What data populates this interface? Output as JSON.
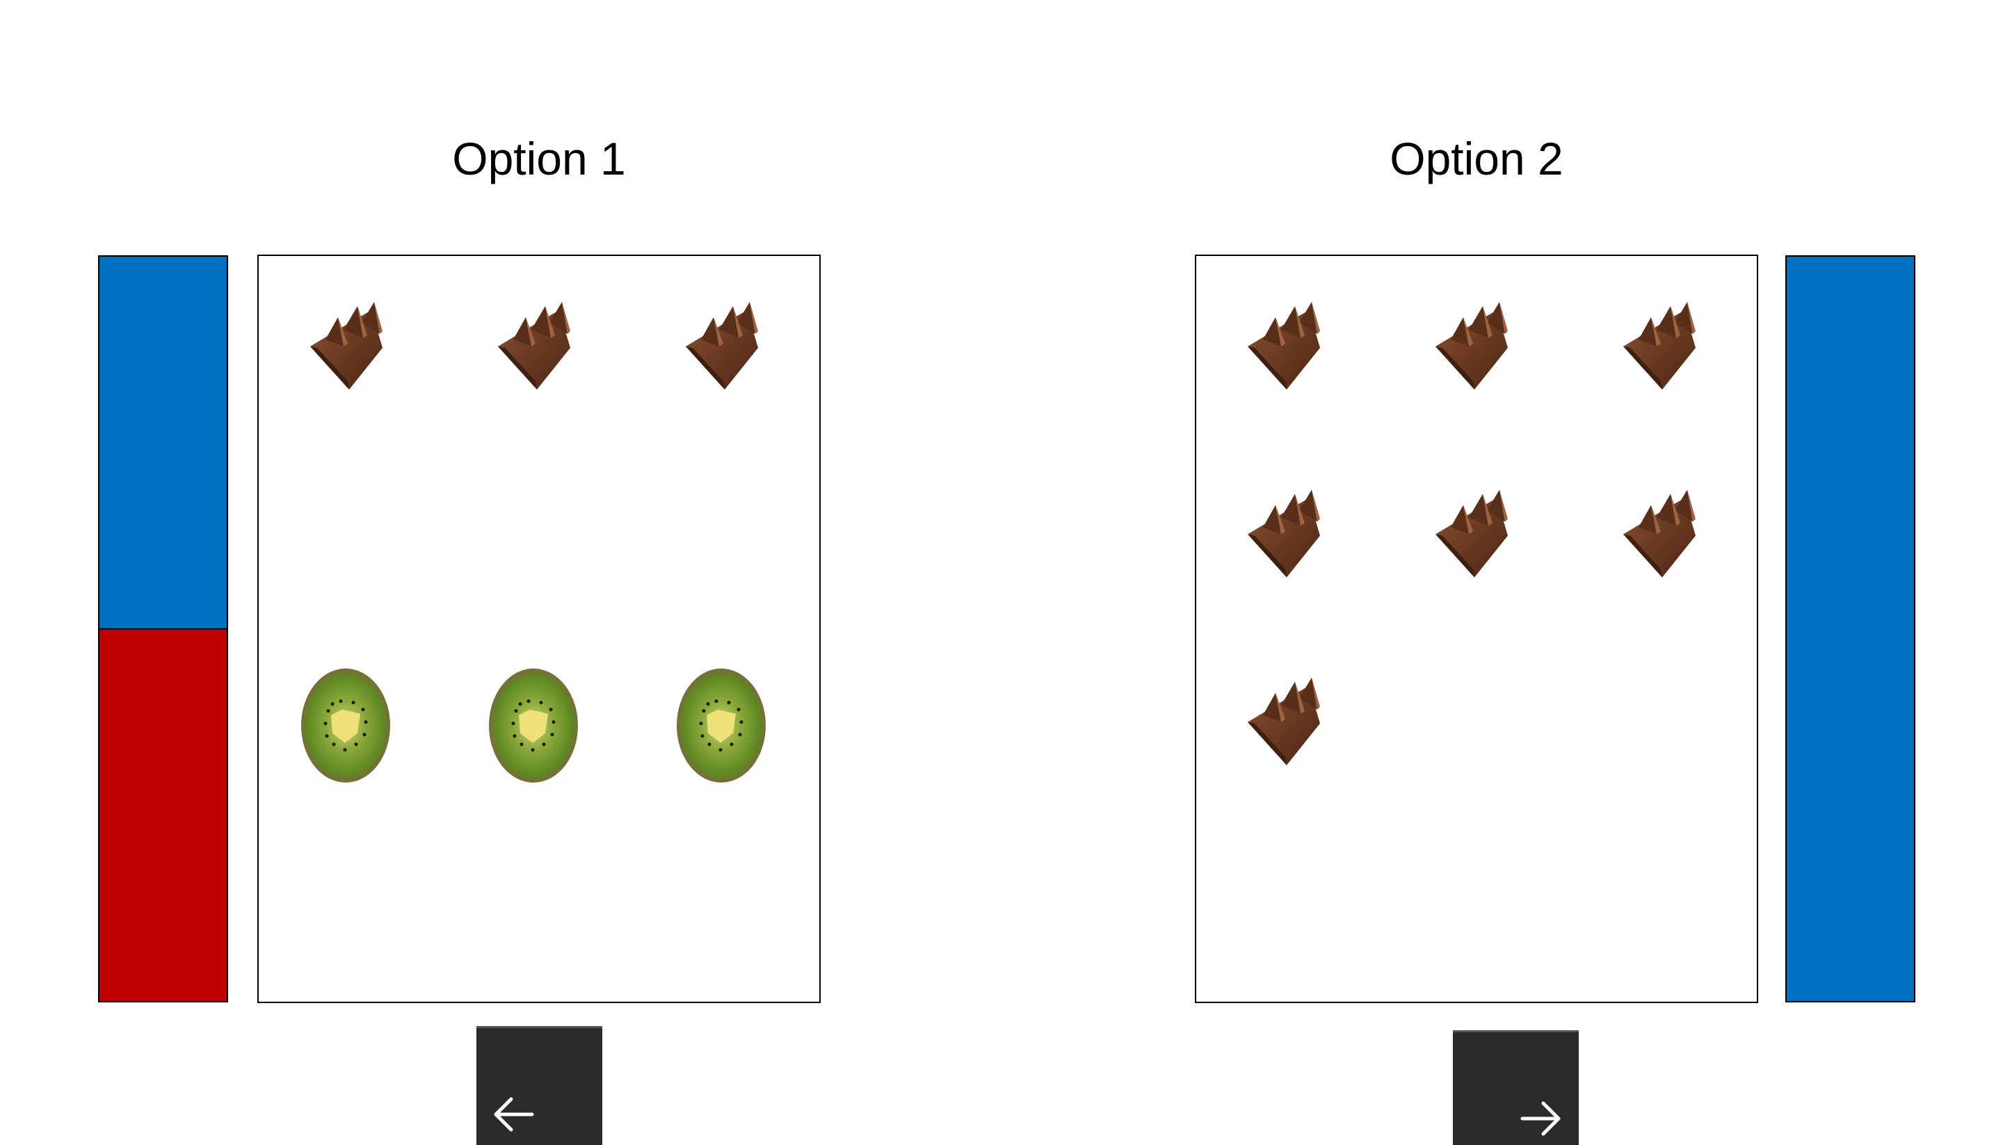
{
  "options": [
    {
      "title": "Option 1",
      "bar": [
        {
          "color": "#0070c0",
          "fraction": 0.5
        },
        {
          "color": "#c00000",
          "fraction": 0.5
        }
      ],
      "items": [
        {
          "type": "chocolate",
          "icon": "chocolate-icon"
        },
        {
          "type": "chocolate",
          "icon": "chocolate-icon"
        },
        {
          "type": "chocolate",
          "icon": "chocolate-icon"
        },
        {
          "type": "kiwi",
          "icon": "kiwi-icon"
        },
        {
          "type": "kiwi",
          "icon": "kiwi-icon"
        },
        {
          "type": "kiwi",
          "icon": "kiwi-icon"
        }
      ],
      "chocolate_count": 3,
      "kiwi_count": 3,
      "button_icon": "arrow-left-icon"
    },
    {
      "title": "Option 2",
      "bar": [
        {
          "color": "#0070c0",
          "fraction": 1.0
        }
      ],
      "items": [
        {
          "type": "chocolate",
          "icon": "chocolate-icon"
        },
        {
          "type": "chocolate",
          "icon": "chocolate-icon"
        },
        {
          "type": "chocolate",
          "icon": "chocolate-icon"
        },
        {
          "type": "chocolate",
          "icon": "chocolate-icon"
        },
        {
          "type": "chocolate",
          "icon": "chocolate-icon"
        },
        {
          "type": "chocolate",
          "icon": "chocolate-icon"
        },
        {
          "type": "chocolate",
          "icon": "chocolate-icon"
        }
      ],
      "chocolate_count": 7,
      "kiwi_count": 0,
      "button_icon": "arrow-right-icon"
    }
  ],
  "colors": {
    "blue": "#0070c0",
    "red": "#c00000",
    "button": "#2b2b2b"
  }
}
